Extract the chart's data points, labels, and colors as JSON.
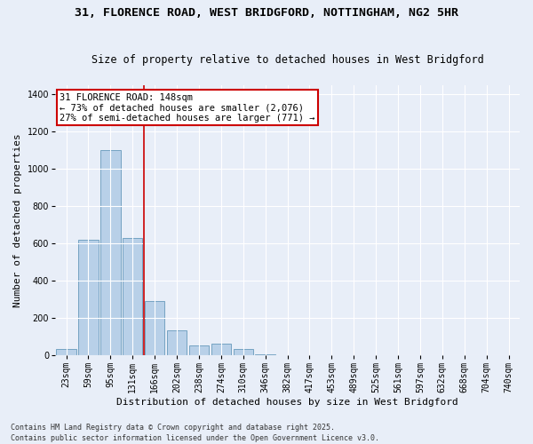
{
  "title_line1": "31, FLORENCE ROAD, WEST BRIDGFORD, NOTTINGHAM, NG2 5HR",
  "title_line2": "Size of property relative to detached houses in West Bridgford",
  "xlabel": "Distribution of detached houses by size in West Bridgford",
  "ylabel": "Number of detached properties",
  "categories": [
    "23sqm",
    "59sqm",
    "95sqm",
    "131sqm",
    "166sqm",
    "202sqm",
    "238sqm",
    "274sqm",
    "310sqm",
    "346sqm",
    "382sqm",
    "417sqm",
    "453sqm",
    "489sqm",
    "525sqm",
    "561sqm",
    "597sqm",
    "632sqm",
    "668sqm",
    "704sqm",
    "740sqm"
  ],
  "values": [
    30,
    620,
    1100,
    630,
    290,
    130,
    50,
    60,
    30,
    5,
    0,
    0,
    0,
    0,
    0,
    0,
    0,
    0,
    0,
    0,
    0
  ],
  "bar_color": "#b8d0e8",
  "bar_edge_color": "#6699bb",
  "vline_x": 3.5,
  "vline_color": "#cc0000",
  "annotation_text": "31 FLORENCE ROAD: 148sqm\n← 73% of detached houses are smaller (2,076)\n27% of semi-detached houses are larger (771) →",
  "annotation_box_color": "#cc0000",
  "bg_color": "#e8eef8",
  "plot_bg_color": "#e8eef8",
  "ylim": [
    0,
    1450
  ],
  "yticks": [
    0,
    200,
    400,
    600,
    800,
    1000,
    1200,
    1400
  ],
  "grid_color": "#ffffff",
  "footer_line1": "Contains HM Land Registry data © Crown copyright and database right 2025.",
  "footer_line2": "Contains public sector information licensed under the Open Government Licence v3.0.",
  "title_fontsize": 9.5,
  "subtitle_fontsize": 8.5,
  "xlabel_fontsize": 8,
  "ylabel_fontsize": 8,
  "tick_fontsize": 7,
  "annotation_fontsize": 7.5,
  "footer_fontsize": 6
}
